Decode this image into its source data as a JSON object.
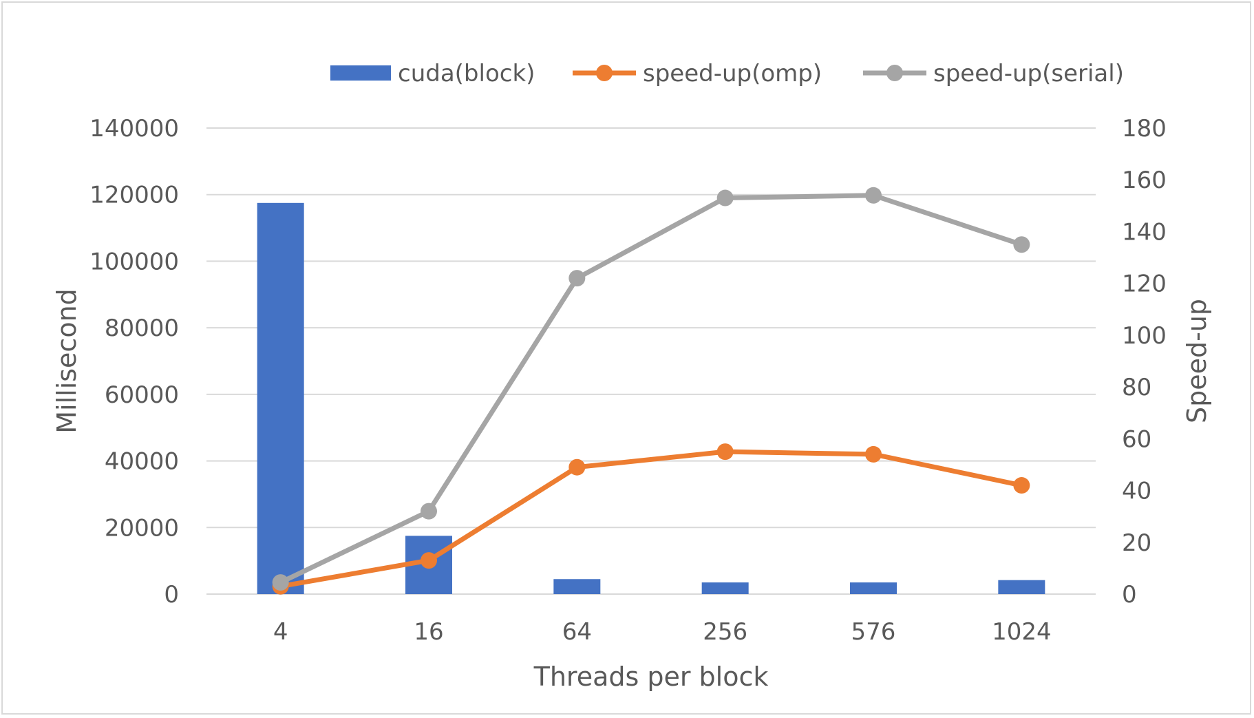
{
  "chart_data": {
    "type": "bar+line",
    "categories": [
      "4",
      "16",
      "64",
      "256",
      "576",
      "1024"
    ],
    "xlabel": "Threads per block",
    "ylabel_left": "Millisecond",
    "ylabel_right": "Speed-up",
    "ylim_left": [
      0,
      140000
    ],
    "ylim_right": [
      0,
      180
    ],
    "yticks_left": [
      "0",
      "20000",
      "40000",
      "60000",
      "80000",
      "100000",
      "120000",
      "140000"
    ],
    "yticks_right": [
      "0",
      "20",
      "40",
      "60",
      "80",
      "100",
      "120",
      "140",
      "160",
      "180"
    ],
    "grid": true,
    "legend_position": "top",
    "series": [
      {
        "name": "cuda(block)",
        "kind": "bar",
        "axis": "left",
        "color": "#4472c4",
        "values": [
          117500,
          17500,
          4500,
          3500,
          3500,
          4200
        ]
      },
      {
        "name": "speed-up(omp)",
        "kind": "line",
        "axis": "right",
        "color": "#ed7d31",
        "values": [
          3,
          13,
          49,
          55,
          54,
          42
        ]
      },
      {
        "name": "speed-up(serial)",
        "kind": "line",
        "axis": "right",
        "color": "#a5a5a5",
        "values": [
          4.5,
          32,
          122,
          153,
          154,
          135
        ]
      }
    ]
  }
}
